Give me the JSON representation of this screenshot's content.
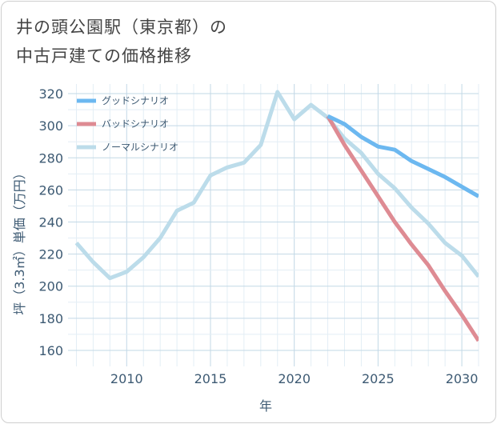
{
  "title": {
    "line1": "井の頭公園駅（東京都）の",
    "line2": "中古戸建ての価格推移"
  },
  "chart_data": {
    "type": "line",
    "xlabel": "年",
    "ylabel": "坪（3.3㎡）単価（万円）",
    "xlim": [
      2006.5,
      2031
    ],
    "ylim": [
      150,
      326
    ],
    "x_ticks": [
      2010,
      2015,
      2020,
      2025,
      2030
    ],
    "y_ticks": [
      160,
      180,
      200,
      220,
      240,
      260,
      280,
      300,
      320
    ],
    "grid": true,
    "legend_position": "top-left",
    "series": [
      {
        "name": "グッドシナリオ",
        "color": "#6cb8f0",
        "x": [
          2022,
          2023,
          2024,
          2025,
          2026,
          2027,
          2028,
          2029,
          2030,
          2031
        ],
        "y": [
          306,
          301,
          293,
          287,
          285,
          278,
          273,
          268,
          262,
          256
        ]
      },
      {
        "name": "バッドシナリオ",
        "color": "#de8b93",
        "x": [
          2022,
          2023,
          2024,
          2025,
          2026,
          2027,
          2028,
          2029,
          2030,
          2031
        ],
        "y": [
          306,
          288,
          272,
          256,
          240,
          226,
          213,
          197,
          182,
          166
        ]
      },
      {
        "name": "ノーマルシナリオ",
        "color": "#bcdcea",
        "x": [
          2007,
          2008,
          2009,
          2010,
          2011,
          2012,
          2013,
          2014,
          2015,
          2016,
          2017,
          2018,
          2019,
          2020,
          2021,
          2022,
          2023,
          2024,
          2025,
          2026,
          2027,
          2028,
          2029,
          2030,
          2031
        ],
        "y": [
          227,
          215,
          205,
          209,
          218,
          230,
          247,
          252,
          269,
          274,
          277,
          288,
          321,
          304,
          313,
          305,
          292,
          283,
          270,
          261,
          249,
          239,
          227,
          219,
          206
        ]
      }
    ]
  }
}
